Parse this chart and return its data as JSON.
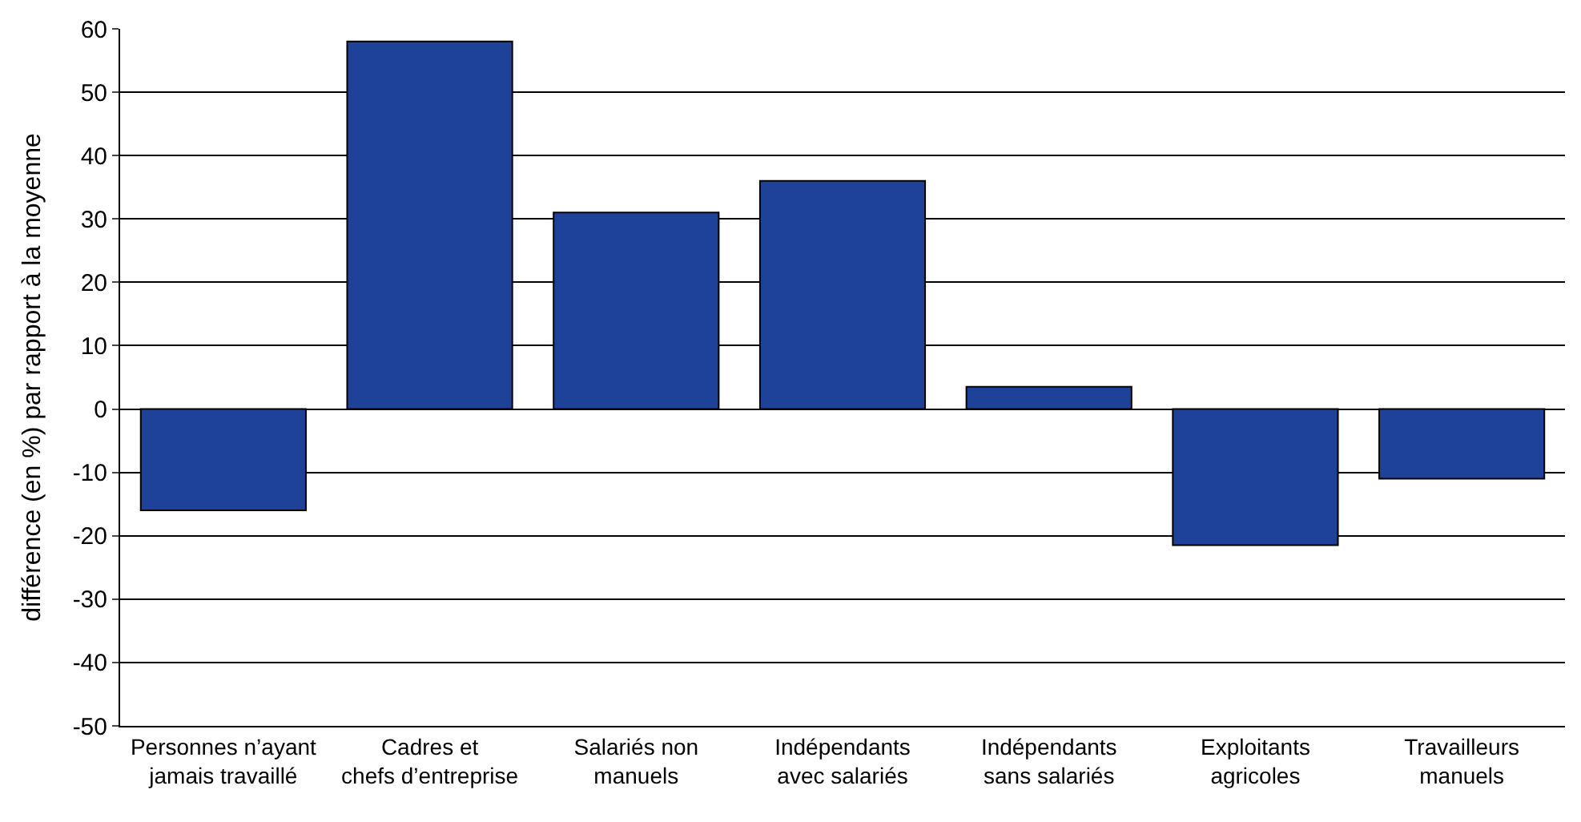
{
  "chart_data": {
    "type": "bar",
    "ylabel": "différence (en %) par rapport à la moyenne",
    "categories": [
      "Personnes n’ayant\njamais travaillé",
      "Cadres et\nchefs d’entreprise",
      "Salariés non\nmanuels",
      "Indépendants\navec salariés",
      "Indépendants\nsans salariés",
      "Exploitants\nagricoles",
      "Travailleurs\nmanuels"
    ],
    "values": [
      -16,
      58,
      31,
      36,
      3.5,
      -21.5,
      -11
    ],
    "color": "#1f4299",
    "ylim": [
      -50,
      60
    ],
    "yticks": [
      -50,
      -40,
      -30,
      -20,
      -10,
      0,
      10,
      20,
      30,
      40,
      50,
      60
    ],
    "grid": "y"
  }
}
